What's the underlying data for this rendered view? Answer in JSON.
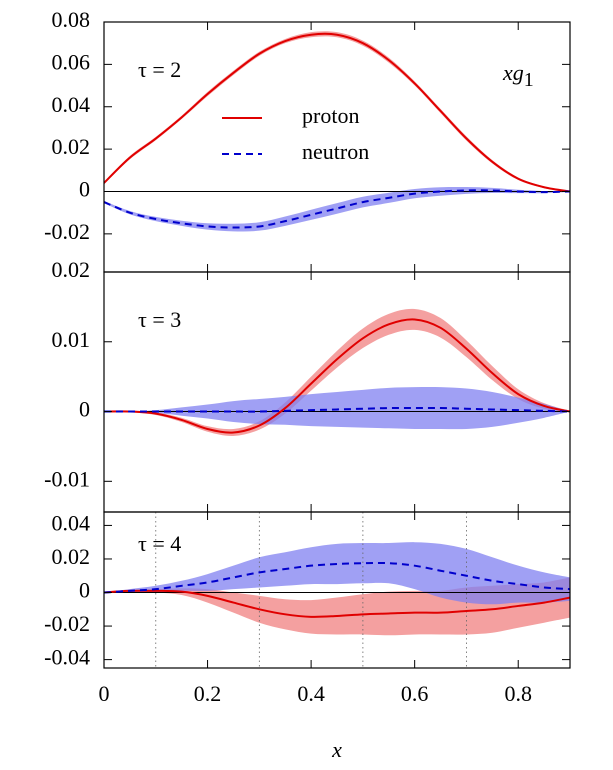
{
  "chart_data": [
    {
      "type": "line",
      "annotation": "τ = 2",
      "label": "xg",
      "label_sub": "1",
      "x": [
        0,
        0.05,
        0.1,
        0.15,
        0.2,
        0.25,
        0.3,
        0.35,
        0.4,
        0.45,
        0.5,
        0.55,
        0.6,
        0.65,
        0.7,
        0.75,
        0.8,
        0.85,
        0.9
      ],
      "xlim": [
        0,
        0.9
      ],
      "xticks": [
        0,
        0.2,
        0.4,
        0.6,
        0.8
      ],
      "ylim": [
        -0.038,
        0.08
      ],
      "yticks": [
        0.08,
        0.06,
        0.04,
        0.02,
        0,
        -0.02
      ],
      "legend": "upper center",
      "series": [
        {
          "name": "proton",
          "color": "#e00000",
          "band_color": "#f08080",
          "dash": false,
          "values": [
            0.004,
            0.016,
            0.025,
            0.035,
            0.046,
            0.056,
            0.065,
            0.071,
            0.074,
            0.074,
            0.07,
            0.062,
            0.051,
            0.038,
            0.025,
            0.014,
            0.006,
            0.002,
            0.0
          ],
          "errors": [
            0.0005,
            0.0008,
            0.0008,
            0.0008,
            0.001,
            0.001,
            0.001,
            0.001,
            0.0012,
            0.0012,
            0.0012,
            0.0012,
            0.001,
            0.001,
            0.001,
            0.0008,
            0.0006,
            0.0004,
            0.0002
          ]
        },
        {
          "name": "neutron",
          "color": "#0000cc",
          "band_color": "#8080f0",
          "dash": true,
          "values": [
            -0.005,
            -0.01,
            -0.013,
            -0.015,
            -0.0165,
            -0.017,
            -0.0165,
            -0.014,
            -0.011,
            -0.008,
            -0.005,
            -0.003,
            -0.001,
            0.0,
            0.0005,
            0.0005,
            0.0,
            -0.0003,
            0.0
          ],
          "errors": [
            0.0005,
            0.0008,
            0.001,
            0.0012,
            0.0015,
            0.0018,
            0.002,
            0.0022,
            0.0024,
            0.0025,
            0.0025,
            0.0024,
            0.0022,
            0.002,
            0.0016,
            0.0012,
            0.0008,
            0.0005,
            0.0002
          ]
        }
      ]
    },
    {
      "type": "line",
      "annotation": "τ = 3",
      "x": [
        0,
        0.05,
        0.1,
        0.15,
        0.2,
        0.25,
        0.3,
        0.35,
        0.4,
        0.45,
        0.5,
        0.55,
        0.6,
        0.65,
        0.7,
        0.75,
        0.8,
        0.85,
        0.9
      ],
      "xlim": [
        0,
        0.9
      ],
      "xticks": [
        0,
        0.2,
        0.4,
        0.6,
        0.8
      ],
      "ylim": [
        -0.0144,
        0.02
      ],
      "yticks": [
        0.02,
        0.01,
        0,
        -0.01
      ],
      "series": [
        {
          "name": "proton",
          "color": "#e00000",
          "band_color": "#f08080",
          "dash": false,
          "values": [
            0,
            0,
            -0.0003,
            -0.0012,
            -0.0025,
            -0.003,
            -0.002,
            0.0005,
            0.004,
            0.0075,
            0.0105,
            0.0125,
            0.0132,
            0.012,
            0.009,
            0.0055,
            0.0025,
            0.0008,
            0
          ],
          "errors": [
            0,
            0.0001,
            0.0002,
            0.0003,
            0.0004,
            0.0005,
            0.0006,
            0.0008,
            0.001,
            0.0012,
            0.0014,
            0.0015,
            0.0015,
            0.0014,
            0.0012,
            0.001,
            0.0007,
            0.0004,
            0.0001
          ]
        },
        {
          "name": "neutron",
          "color": "#0000cc",
          "band_color": "#8080f0",
          "dash": true,
          "values": [
            0,
            0,
            0,
            0,
            0,
            0,
            0,
            0.0001,
            0.0002,
            0.0003,
            0.0004,
            0.0005,
            0.0005,
            0.0005,
            0.0004,
            0.0003,
            0.0002,
            0.0001,
            0
          ],
          "errors": [
            0,
            0,
            0.0002,
            0.0006,
            0.001,
            0.0015,
            0.0018,
            0.002,
            0.0023,
            0.0025,
            0.0027,
            0.0029,
            0.003,
            0.003,
            0.0029,
            0.0025,
            0.0018,
            0.001,
            0
          ]
        }
      ]
    },
    {
      "type": "line",
      "annotation": "τ = 4",
      "xlabel": "x",
      "x": [
        0,
        0.05,
        0.1,
        0.15,
        0.2,
        0.25,
        0.3,
        0.35,
        0.4,
        0.45,
        0.5,
        0.55,
        0.6,
        0.65,
        0.7,
        0.75,
        0.8,
        0.85,
        0.9
      ],
      "xlim": [
        0,
        0.9
      ],
      "xticks": [
        0,
        0.2,
        0.4,
        0.6,
        0.8
      ],
      "ylim": [
        -0.045,
        0.048
      ],
      "yticks": [
        0.04,
        0.02,
        0,
        -0.02,
        -0.04
      ],
      "vlines": [
        0.1,
        0.3,
        0.5,
        0.7
      ],
      "series": [
        {
          "name": "proton",
          "color": "#e00000",
          "band_color": "#f08080",
          "dash": false,
          "values": [
            0,
            0.001,
            0.001,
            0.0005,
            -0.002,
            -0.006,
            -0.01,
            -0.013,
            -0.0145,
            -0.014,
            -0.013,
            -0.0125,
            -0.012,
            -0.012,
            -0.011,
            -0.01,
            -0.008,
            -0.006,
            -0.003
          ],
          "errors": [
            0,
            0.0005,
            0.001,
            0.002,
            0.004,
            0.006,
            0.008,
            0.009,
            0.01,
            0.011,
            0.012,
            0.013,
            0.013,
            0.013,
            0.014,
            0.014,
            0.013,
            0.012,
            0.012
          ]
        },
        {
          "name": "neutron",
          "color": "#0000cc",
          "band_color": "#8080f0",
          "dash": true,
          "values": [
            0,
            0.001,
            0.002,
            0.004,
            0.006,
            0.009,
            0.012,
            0.014,
            0.016,
            0.017,
            0.0175,
            0.0175,
            0.016,
            0.013,
            0.01,
            0.007,
            0.005,
            0.003,
            0.002
          ],
          "errors": [
            0,
            0.001,
            0.002,
            0.003,
            0.005,
            0.007,
            0.009,
            0.01,
            0.011,
            0.012,
            0.012,
            0.012,
            0.014,
            0.016,
            0.016,
            0.014,
            0.011,
            0.009,
            0.007
          ]
        }
      ]
    }
  ]
}
